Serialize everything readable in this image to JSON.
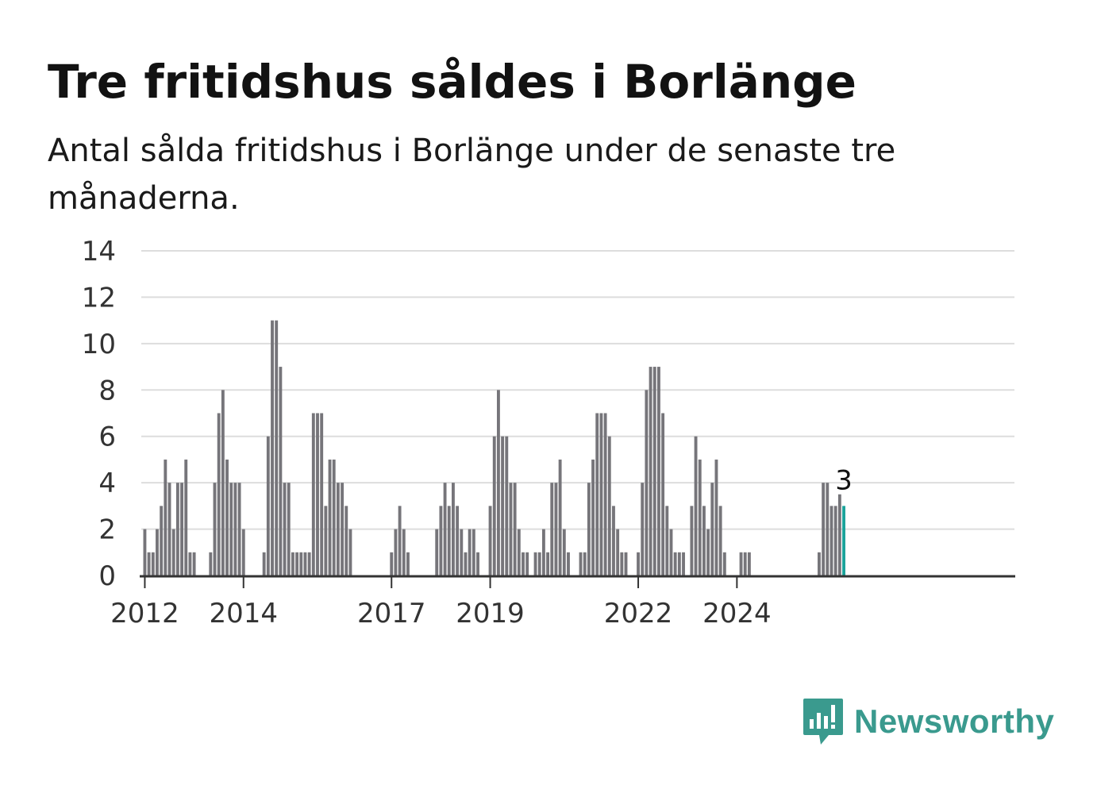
{
  "title": "Tre fritidshus såldes i Borlänge",
  "subtitle": "Antal sålda fritidshus i Borlänge under de senaste tre månaderna.",
  "brand": {
    "name": "Newsworthy",
    "color": "#3a9a8e",
    "icon": "newsworthy-chart-bubble-icon"
  },
  "colors": {
    "bar": "#76757a",
    "highlight": "#1aa39a",
    "grid": "#dddddd",
    "axis": "#333333"
  },
  "chart_data": {
    "type": "bar",
    "x_start": "2011-01",
    "period": "month",
    "ylim": [
      0,
      14
    ],
    "y_ticks": [
      0,
      2,
      4,
      6,
      8,
      10,
      12,
      14
    ],
    "x_tick_labels": [
      "2012",
      "2014",
      "2017",
      "2019",
      "2022",
      "2024"
    ],
    "grid": true,
    "highlight_last": true,
    "last_value_label": "3",
    "values": [
      0,
      0,
      0,
      0,
      0,
      0,
      0,
      0,
      0,
      0,
      0,
      0,
      2,
      1,
      1,
      2,
      3,
      5,
      4,
      2,
      4,
      4,
      5,
      1,
      1,
      0,
      0,
      0,
      1,
      4,
      7,
      8,
      5,
      4,
      4,
      4,
      2,
      0,
      0,
      0,
      0,
      1,
      6,
      11,
      11,
      9,
      4,
      4,
      1,
      1,
      1,
      1,
      1,
      7,
      7,
      7,
      3,
      5,
      5,
      4,
      4,
      3,
      2,
      0,
      0,
      0,
      0,
      0,
      0,
      0,
      0,
      0,
      1,
      2,
      3,
      2,
      1,
      0,
      0,
      0,
      0,
      0,
      0,
      2,
      3,
      4,
      3,
      4,
      3,
      2,
      1,
      2,
      2,
      1,
      0,
      0,
      3,
      6,
      8,
      6,
      6,
      4,
      4,
      2,
      1,
      1,
      0,
      1,
      1,
      2,
      1,
      4,
      4,
      5,
      2,
      1,
      0,
      0,
      1,
      1,
      4,
      5,
      7,
      7,
      7,
      6,
      3,
      2,
      1,
      1,
      0,
      0,
      1,
      4,
      8,
      9,
      9,
      9,
      7,
      3,
      2,
      1,
      1,
      1,
      0,
      3,
      6,
      5,
      3,
      2,
      4,
      5,
      3,
      1,
      0,
      0,
      0,
      1,
      1,
      1,
      0,
      0,
      0,
      0,
      0,
      0,
      0,
      0,
      0,
      0,
      0,
      0,
      0,
      0,
      0,
      0,
      1,
      4,
      4,
      3,
      3,
      3.5,
      3
    ]
  }
}
